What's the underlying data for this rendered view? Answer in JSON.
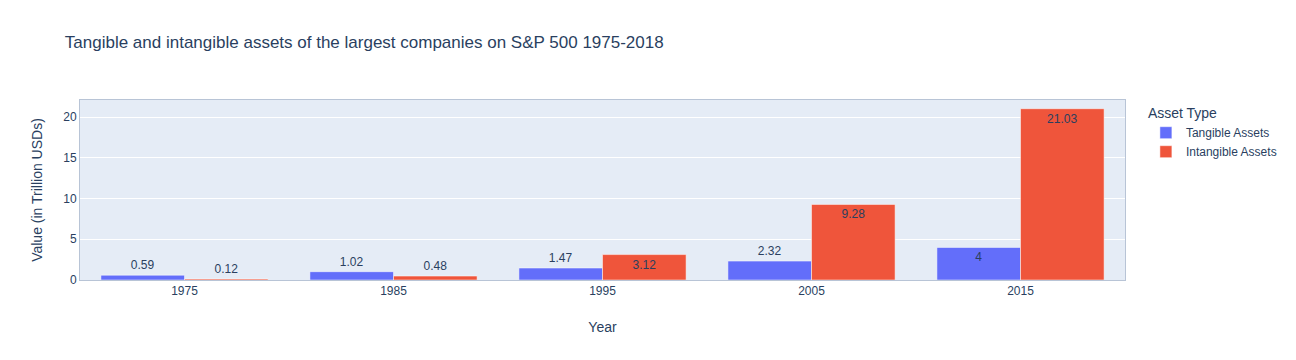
{
  "chart_data": {
    "type": "bar",
    "title": "Tangible and intangible assets of the largest companies on S&P 500 1975-2018",
    "x_label": "Year",
    "y_label": "Value (in Trillion USDs)",
    "legend_title": "Asset Type",
    "categories": [
      "1975",
      "1985",
      "1995",
      "2005",
      "2015"
    ],
    "series": [
      {
        "name": "Tangible Assets",
        "color": "#636efa",
        "values": [
          0.59,
          1.02,
          1.47,
          2.32,
          4
        ]
      },
      {
        "name": "Intangible Assets",
        "color": "#EF553B",
        "values": [
          0.12,
          0.48,
          3.12,
          9.28,
          21.03
        ]
      }
    ],
    "ylim": [
      0,
      22.1
    ],
    "yticks": [
      0,
      5,
      10,
      15,
      20
    ],
    "grid": true,
    "legend": "top right",
    "data_labels": true
  }
}
